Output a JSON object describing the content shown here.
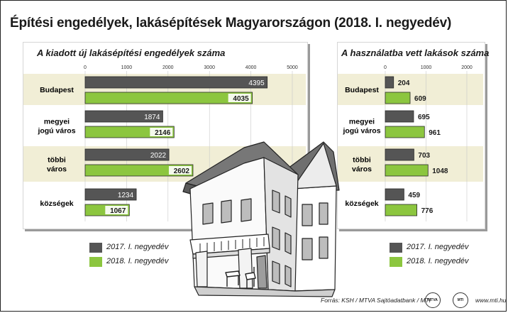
{
  "title": "Építési engedélyek, lakásépítések Magyarországon (2018. I. negyedév)",
  "legend": [
    {
      "name": "2017. I. negyedév",
      "color": "#555555"
    },
    {
      "name": "2018. I. negyedév",
      "color": "#8cc63f"
    }
  ],
  "colors": {
    "band": "#f1eed6",
    "series_2017": "#555555",
    "series_2018": "#8cc63f"
  },
  "footer": {
    "source": "Forrás: KSH / MTVA Sajtóadatbank / MTI",
    "url": "www.mti.hu",
    "logo1": "MTVA",
    "logo2": "MTI"
  },
  "chart_data": [
    {
      "type": "bar",
      "orientation": "horizontal",
      "title": "A kiadott új lakásépítési engedélyek száma",
      "categories": [
        "Budapest",
        "megyei\njogú város",
        "többi\nváros",
        "községek"
      ],
      "series": [
        {
          "name": "2017. I. negyedév",
          "values": [
            4395,
            1874,
            2022,
            1234
          ]
        },
        {
          "name": "2018. I. negyedév",
          "values": [
            4035,
            2146,
            2602,
            1067
          ]
        }
      ],
      "xlim": [
        0,
        5000
      ],
      "xticks": [
        0,
        1000,
        2000,
        3000,
        4000,
        5000
      ],
      "grid": true,
      "legend": "bottom-left"
    },
    {
      "type": "bar",
      "orientation": "horizontal",
      "title": "A használatba vett lakások száma",
      "categories": [
        "Budapest",
        "megyei\njogú város",
        "többi\nváros",
        "községek"
      ],
      "series": [
        {
          "name": "2017. I. negyedév",
          "values": [
            204,
            695,
            703,
            459
          ]
        },
        {
          "name": "2018. I. negyedév",
          "values": [
            609,
            961,
            1048,
            776
          ]
        }
      ],
      "xlim": [
        0,
        2000
      ],
      "xticks": [
        0,
        1000,
        2000
      ],
      "grid": true,
      "legend": "bottom-right"
    }
  ]
}
